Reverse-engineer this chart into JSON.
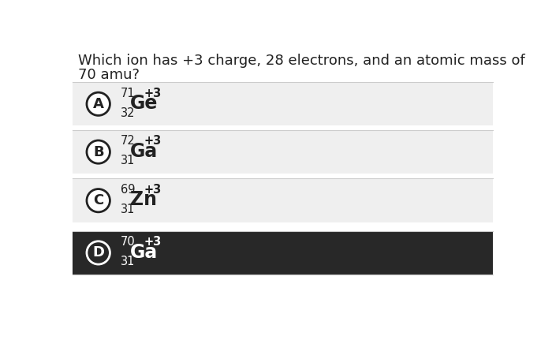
{
  "question_line1": "Which ion has +3 charge, 28 electrons, and an atomic mass of",
  "question_line2": "70 amu?",
  "options": [
    {
      "letter": "A",
      "mass": "71",
      "atomic_num": "32",
      "element": "Ge",
      "charge": "+3",
      "bg": "#efefef",
      "text_color": "#222222",
      "circle_fill": "#ffffff",
      "circle_edge": "#222222",
      "letter_color": "#222222"
    },
    {
      "letter": "B",
      "mass": "72",
      "atomic_num": "31",
      "element": "Ga",
      "charge": "+3",
      "bg": "#efefef",
      "text_color": "#222222",
      "circle_fill": "#ffffff",
      "circle_edge": "#222222",
      "letter_color": "#222222"
    },
    {
      "letter": "C",
      "mass": "69",
      "atomic_num": "31",
      "element": "Zn",
      "charge": "+3",
      "bg": "#efefef",
      "text_color": "#222222",
      "circle_fill": "#ffffff",
      "circle_edge": "#222222",
      "letter_color": "#222222"
    },
    {
      "letter": "D",
      "mass": "70",
      "atomic_num": "31",
      "element": "Ga",
      "charge": "+3",
      "bg": "#282828",
      "text_color": "#ffffff",
      "circle_fill": "#282828",
      "circle_edge": "#ffffff",
      "letter_color": "#ffffff"
    }
  ],
  "figure_bg": "#ffffff",
  "option_bg_light": "#efefef",
  "separator_color": "#cccccc",
  "question_color": "#222222"
}
